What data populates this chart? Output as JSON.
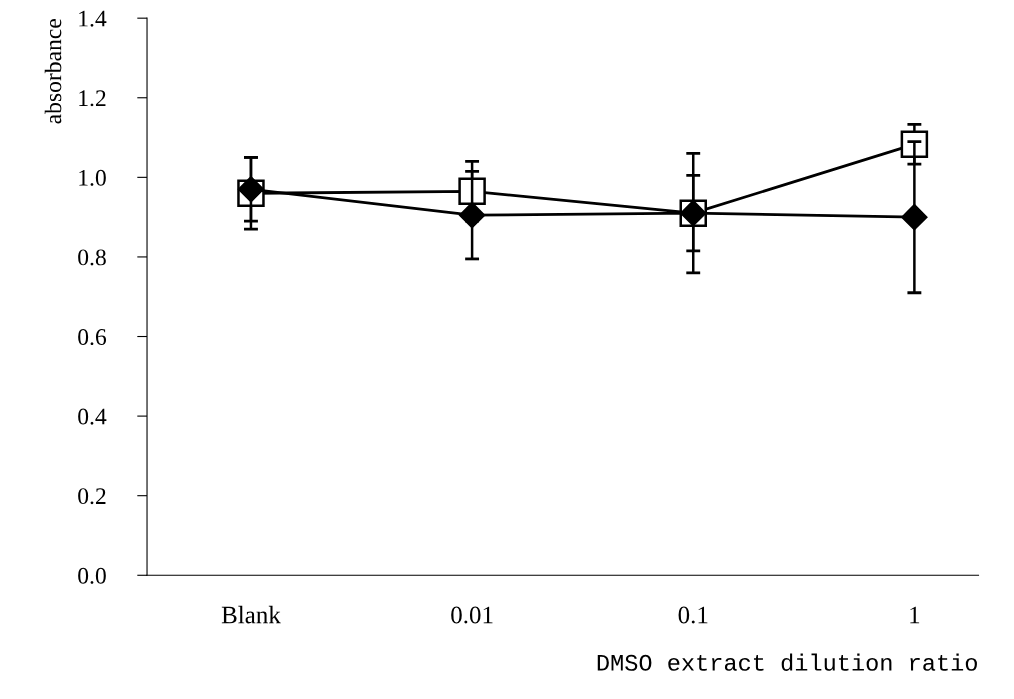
{
  "chart_data": {
    "type": "line",
    "xlabel": "DMSO extract dilution ratio",
    "ylabel": "absorbance",
    "categories": [
      "Blank",
      "0.01",
      "0.1",
      "1"
    ],
    "series": [
      {
        "color": "#000000",
        "marker": "square",
        "values": [
          0.96,
          0.965,
          0.91,
          1.083
        ],
        "errors": [
          0.09,
          0.075,
          0.095,
          0.05
        ]
      },
      {
        "color": "#000000",
        "marker": "diamond",
        "values": [
          0.97,
          0.905,
          0.91,
          0.9
        ],
        "errors": [
          0.08,
          0.11,
          0.15,
          0.19
        ]
      }
    ],
    "ylim": [
      0,
      1.4
    ],
    "yticks": [
      {
        "value": 0,
        "label": "0.0"
      },
      {
        "value": 0.2,
        "label": "0.2"
      },
      {
        "value": 0.4,
        "label": "0.4"
      },
      {
        "value": 0.6,
        "label": "0.6"
      },
      {
        "value": 0.8,
        "label": "0.8"
      },
      {
        "value": 1.0,
        "label": "1.0"
      },
      {
        "value": 1.2,
        "label": "1.2"
      },
      {
        "value": 1.4,
        "label": "1.4"
      }
    ],
    "grid": false,
    "legend": false,
    "line_style": "solid"
  }
}
